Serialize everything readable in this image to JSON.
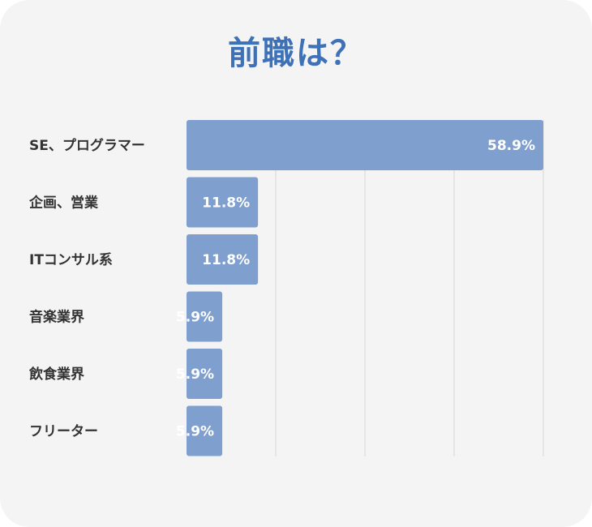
{
  "chart_data": {
    "type": "bar",
    "orientation": "horizontal",
    "title": "前職は？",
    "categories": [
      "SE、プログラマー",
      "企画、営業",
      "ITコンサル系",
      "音楽業界",
      "飲食業界",
      "フリーター"
    ],
    "values": [
      58.9,
      11.8,
      11.8,
      5.9,
      5.9,
      5.9
    ],
    "value_labels": [
      "58.9%",
      "11.8%",
      "11.8%",
      "5.9%",
      "5.9%",
      "5.9%"
    ],
    "xlim": [
      0,
      60
    ],
    "grid": true,
    "legend": "none",
    "xlabel": "",
    "ylabel": ""
  },
  "colors": {
    "bar": "#7f9fcf",
    "title": "#3d71b8",
    "label": "#333333",
    "value_label": "#ffffff",
    "grid": "#d6d6d6",
    "background": "#f5f4f4"
  }
}
